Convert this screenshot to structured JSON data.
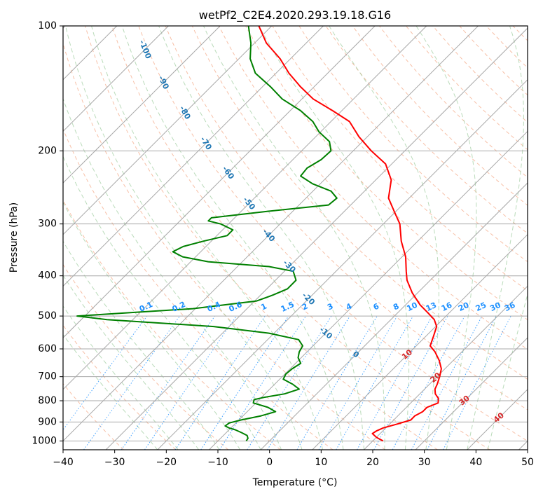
{
  "chart_data": {
    "type": "line",
    "title": "wetPf2_C2E4.2020.293.19.18.G16",
    "xlabel": "Temperature (°C)",
    "ylabel": "Pressure (hPa)",
    "x_scale": "skew-T",
    "y_scale": "log (inverted)",
    "xlim": [
      -40,
      50
    ],
    "ylim": [
      1050,
      100
    ],
    "x_ticks": [
      "−40",
      "−30",
      "−20",
      "−10",
      "0",
      "10",
      "20",
      "30",
      "40",
      "50"
    ],
    "y_ticks": [
      "100",
      "200",
      "300",
      "400",
      "500",
      "600",
      "700",
      "800",
      "900",
      "1000"
    ],
    "grid": true,
    "series": [
      {
        "role": "temperature",
        "color": "#ff0000",
        "points": [
          [
            1000,
            22
          ],
          [
            980,
            20
          ],
          [
            960,
            18.5
          ],
          [
            945,
            18.8
          ],
          [
            930,
            19.5
          ],
          [
            910,
            21.5
          ],
          [
            890,
            23.3
          ],
          [
            870,
            23.3
          ],
          [
            850,
            24
          ],
          [
            830,
            24
          ],
          [
            810,
            25.3
          ],
          [
            790,
            24.5
          ],
          [
            770,
            23
          ],
          [
            750,
            22
          ],
          [
            730,
            21.5
          ],
          [
            700,
            20.5
          ],
          [
            670,
            19.3
          ],
          [
            640,
            17.3
          ],
          [
            610,
            14.8
          ],
          [
            590,
            12.7
          ],
          [
            560,
            11.5
          ],
          [
            530,
            10.2
          ],
          [
            510,
            8.4
          ],
          [
            490,
            5.7
          ],
          [
            470,
            2.8
          ],
          [
            440,
            -1
          ],
          [
            410,
            -4.5
          ],
          [
            390,
            -6.4
          ],
          [
            360,
            -9.3
          ],
          [
            330,
            -13.2
          ],
          [
            300,
            -16.8
          ],
          [
            280,
            -20.3
          ],
          [
            260,
            -24
          ],
          [
            235,
            -27
          ],
          [
            215,
            -31.2
          ],
          [
            200,
            -36.5
          ],
          [
            185,
            -41.6
          ],
          [
            170,
            -46.4
          ],
          [
            160,
            -51.8
          ],
          [
            150,
            -57.8
          ],
          [
            140,
            -62.7
          ],
          [
            130,
            -67.5
          ],
          [
            120,
            -72
          ],
          [
            110,
            -77.7
          ],
          [
            100,
            -82.5
          ]
        ]
      },
      {
        "role": "dewpoint",
        "color": "#008000",
        "points": [
          [
            1000,
            -4.5
          ],
          [
            985,
            -4.7
          ],
          [
            970,
            -5.4
          ],
          [
            955,
            -7
          ],
          [
            940,
            -8.8
          ],
          [
            930,
            -10.4
          ],
          [
            920,
            -11.5
          ],
          [
            905,
            -11.3
          ],
          [
            890,
            -9.6
          ],
          [
            870,
            -6.5
          ],
          [
            850,
            -4.5
          ],
          [
            830,
            -6.8
          ],
          [
            810,
            -10.5
          ],
          [
            795,
            -11
          ],
          [
            785,
            -9.5
          ],
          [
            770,
            -6.2
          ],
          [
            750,
            -4.3
          ],
          [
            730,
            -6.5
          ],
          [
            710,
            -9.3
          ],
          [
            690,
            -9.8
          ],
          [
            670,
            -9.6
          ],
          [
            650,
            -9
          ],
          [
            630,
            -10.6
          ],
          [
            610,
            -11.5
          ],
          [
            590,
            -12
          ],
          [
            570,
            -14
          ],
          [
            550,
            -21
          ],
          [
            530,
            -33
          ],
          [
            510,
            -55
          ],
          [
            500,
            -61.5
          ],
          [
            480,
            -40.5
          ],
          [
            460,
            -29.6
          ],
          [
            445,
            -27.6
          ],
          [
            430,
            -26
          ],
          [
            410,
            -26
          ],
          [
            390,
            -28.3
          ],
          [
            380,
            -33.9
          ],
          [
            370,
            -46.6
          ],
          [
            360,
            -52.5
          ],
          [
            350,
            -55.4
          ],
          [
            340,
            -54.4
          ],
          [
            330,
            -51.5
          ],
          [
            320,
            -48
          ],
          [
            310,
            -48
          ],
          [
            300,
            -51.5
          ],
          [
            295,
            -54.5
          ],
          [
            290,
            -54.5
          ],
          [
            280,
            -45.1
          ],
          [
            270,
            -34.3
          ],
          [
            260,
            -34
          ],
          [
            250,
            -36.5
          ],
          [
            240,
            -41.5
          ],
          [
            230,
            -45.3
          ],
          [
            220,
            -45.6
          ],
          [
            210,
            -44.5
          ],
          [
            200,
            -44.3
          ],
          [
            190,
            -46.4
          ],
          [
            180,
            -50.3
          ],
          [
            170,
            -53.5
          ],
          [
            160,
            -58
          ],
          [
            150,
            -63.8
          ],
          [
            140,
            -68.5
          ],
          [
            130,
            -74
          ],
          [
            120,
            -77.8
          ],
          [
            110,
            -80.7
          ],
          [
            100,
            -84.5
          ]
        ]
      }
    ],
    "dry_adiabat_labels": [
      "-100",
      "-90",
      "-80",
      "-70",
      "-60",
      "-50",
      "-40",
      "-30",
      "-20",
      "-10",
      "0"
    ],
    "moist_adiabat_labels": [
      "10",
      "20",
      "30",
      "40"
    ],
    "mixing_ratio_labels": [
      "0.1",
      "0.2",
      "0.4",
      "0.6",
      "1",
      "1.5",
      "2",
      "3",
      "4",
      "6",
      "8",
      "10",
      "13",
      "16",
      "20",
      "25",
      "30",
      "36"
    ]
  }
}
